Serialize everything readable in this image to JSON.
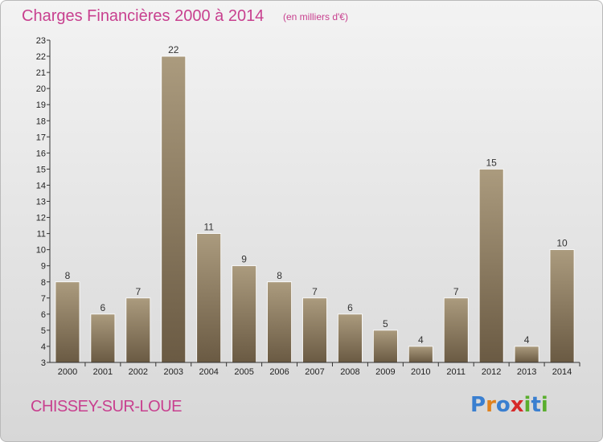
{
  "header": {
    "title": "Charges Financières 2000 à 2014",
    "subtitle": "(en milliers d'€)"
  },
  "footer": {
    "commune": "CHISSEY-SUR-LOUE",
    "logo_letters": [
      "P",
      "r",
      "o",
      "x",
      "i",
      "t",
      "i"
    ],
    "logo_colors": [
      "#3a7fd0",
      "#e0821e",
      "#3a7fd0",
      "#d62a2a",
      "#5aae2e",
      "#3a7fd0",
      "#5aae2e"
    ]
  },
  "colors": {
    "title": "#c8408f",
    "bar_top": "#ab9b7e",
    "bar_bottom": "#6a5a43",
    "axis": "#333333"
  },
  "chart_data": {
    "type": "bar",
    "title": "Charges Financières 2000 à 2014",
    "subtitle": "(en milliers d'€)",
    "categories": [
      "2000",
      "2001",
      "2002",
      "2003",
      "2004",
      "2005",
      "2006",
      "2007",
      "2008",
      "2009",
      "2010",
      "2011",
      "2012",
      "2013",
      "2014"
    ],
    "values": [
      8,
      6,
      7,
      22,
      11,
      9,
      8,
      7,
      6,
      5,
      4,
      7,
      15,
      4,
      10
    ],
    "ylim": [
      3,
      23
    ],
    "yticks": [
      3,
      4,
      5,
      6,
      7,
      8,
      9,
      10,
      11,
      12,
      13,
      14,
      15,
      16,
      17,
      18,
      19,
      20,
      21,
      22,
      23
    ],
    "grid": false,
    "data_labels": true
  }
}
